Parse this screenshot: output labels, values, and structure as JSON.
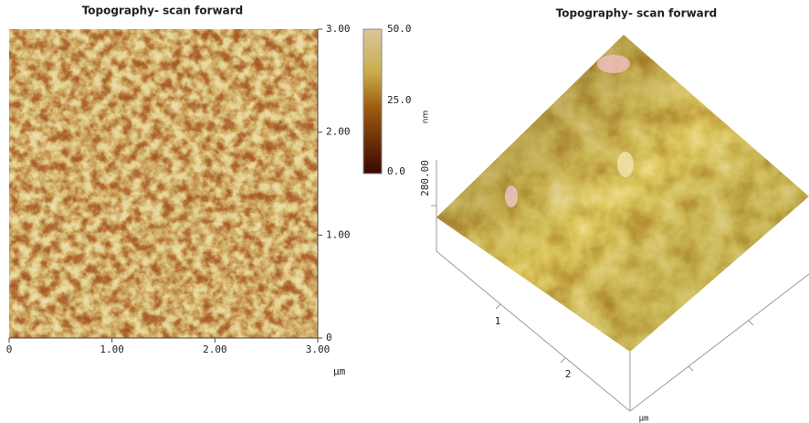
{
  "left_panel": {
    "title": "Topography- scan forward",
    "x_ticks": [
      "0",
      "1.00",
      "2.00",
      "3.00"
    ],
    "y_ticks": [
      "0",
      "1.00",
      "2.00",
      "3.00"
    ],
    "x_unit": "µm",
    "colorbar_ticks": [
      "0.0",
      "25.0",
      "50.0"
    ]
  },
  "right_panel": {
    "title": "Topography- scan forward",
    "z_unit": "nm",
    "z_tick": "280.00",
    "axis_ticks": [
      "1",
      "2"
    ],
    "axis_unit": "µm"
  }
}
